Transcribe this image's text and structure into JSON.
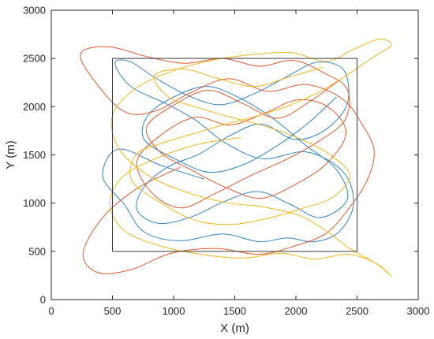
{
  "chart_data": {
    "type": "line",
    "title": "",
    "xlabel": "X (m)",
    "ylabel": "Y (m)",
    "xlim": [
      0,
      3000
    ],
    "ylim": [
      0,
      3000
    ],
    "xticks": [
      "0",
      "500",
      "1000",
      "1500",
      "2000",
      "2500",
      "3000"
    ],
    "yticks": [
      "0",
      "500",
      "1000",
      "1500",
      "2000",
      "2500",
      "3000"
    ],
    "grid": false,
    "legend": "none",
    "boundary": {
      "x": [
        500,
        2500,
        2500,
        500,
        500
      ],
      "y": [
        500,
        500,
        2500,
        2500,
        500
      ],
      "color": "#3a3a3a"
    },
    "colors": {
      "blue": "#2f84c4",
      "orange": "#e35a2d",
      "yellow": "#f2b51f"
    },
    "series": [
      {
        "color": "#2f84c4",
        "x": [
          1250,
          900,
          550,
          420,
          600,
          760,
          1050,
          1400,
          1700,
          1930,
          2150,
          2350,
          2470,
          2390,
          2090,
          1730,
          1430,
          1180,
          940,
          650,
          520,
          640,
          850,
          1110,
          1380,
          1650,
          1910,
          2170,
          2390,
          2420,
          2240,
          1990,
          1720,
          1460,
          1210,
          960,
          760,
          700,
          880,
          1150,
          1420,
          1690,
          1950,
          2200,
          2420,
          2330,
          2080,
          1810,
          1540,
          1270,
          1000,
          790,
          760,
          1010,
          1290,
          1570,
          1840,
          2100,
          2330
        ],
        "y": [
          1250,
          1390,
          1560,
          1280,
          980,
          700,
          610,
          680,
          600,
          640,
          600,
          700,
          980,
          1320,
          1530,
          1460,
          1620,
          1860,
          2030,
          2210,
          2450,
          2470,
          2300,
          2120,
          2020,
          2130,
          2300,
          2460,
          2380,
          2030,
          1760,
          1660,
          1820,
          1700,
          1510,
          1380,
          1170,
          930,
          790,
          860,
          1020,
          1120,
          990,
          850,
          1040,
          1350,
          1600,
          1880,
          2090,
          2210,
          2100,
          1910,
          1660,
          1460,
          1320,
          1400,
          1590,
          1830,
          2100
        ]
      },
      {
        "color": "#e35a2d",
        "x": [
          1050,
          700,
          420,
          260,
          380,
          650,
          980,
          1350,
          1700,
          2000,
          2250,
          2430,
          2580,
          2640,
          2540,
          2380,
          2090,
          1770,
          1450,
          1130,
          840,
          580,
          300,
          250,
          480,
          780,
          1090,
          1400,
          1700,
          1980,
          2230,
          2420,
          2400,
          2160,
          1900,
          1620,
          1340,
          1060,
          820,
          700,
          900,
          1180,
          1460,
          1740,
          2010,
          2260,
          2410,
          2250,
          1990,
          1710,
          1430,
          1150,
          890,
          780,
          1020,
          1290,
          1570,
          1850,
          2120,
          2350
        ],
        "y": [
          1370,
          1150,
          850,
          480,
          280,
          310,
          480,
          530,
          470,
          560,
          690,
          940,
          1230,
          1540,
          1820,
          2080,
          2230,
          2160,
          2290,
          2140,
          1950,
          1960,
          2360,
          2570,
          2620,
          2520,
          2450,
          2500,
          2420,
          2480,
          2350,
          2180,
          1860,
          1620,
          1440,
          1280,
          1100,
          950,
          1110,
          1430,
          1710,
          1890,
          1810,
          1930,
          2070,
          2000,
          1730,
          1410,
          1190,
          1050,
          1160,
          1340,
          1530,
          1790,
          2030,
          2170,
          2030,
          1880,
          2060,
          2270
        ]
      },
      {
        "color": "#f2b51f",
        "x": [
          1550,
          1200,
          850,
          580,
          480,
          590,
          880,
          1220,
          1560,
          1880,
          2150,
          2420,
          2650,
          2780,
          2660,
          2440,
          2260,
          2030,
          1730,
          1410,
          1090,
          790,
          550,
          500,
          690,
          990,
          1310,
          1640,
          1970,
          2250,
          2480,
          2680,
          2780,
          2640,
          2420,
          2200,
          1960,
          1700,
          1430,
          1160,
          900,
          690,
          660,
          900,
          1180,
          1470,
          1760,
          2040,
          2300,
          2440,
          2270,
          2010,
          1740,
          1470,
          1200,
          960,
          840,
          1080,
          1370,
          1660,
          1950,
          2220
        ],
        "y": [
          1680,
          1610,
          1460,
          1270,
          1000,
          720,
          560,
          470,
          430,
          480,
          420,
          470,
          380,
          240,
          370,
          530,
          700,
          870,
          960,
          1010,
          1120,
          1290,
          1570,
          1910,
          2190,
          2370,
          2480,
          2540,
          2560,
          2470,
          2600,
          2700,
          2640,
          2520,
          2330,
          2160,
          2020,
          1910,
          1820,
          1720,
          1620,
          1500,
          1230,
          1000,
          820,
          780,
          840,
          940,
          1060,
          1290,
          1510,
          1680,
          1800,
          1890,
          1990,
          2100,
          2320,
          2390,
          2290,
          2210,
          2310,
          2410
        ]
      }
    ]
  }
}
